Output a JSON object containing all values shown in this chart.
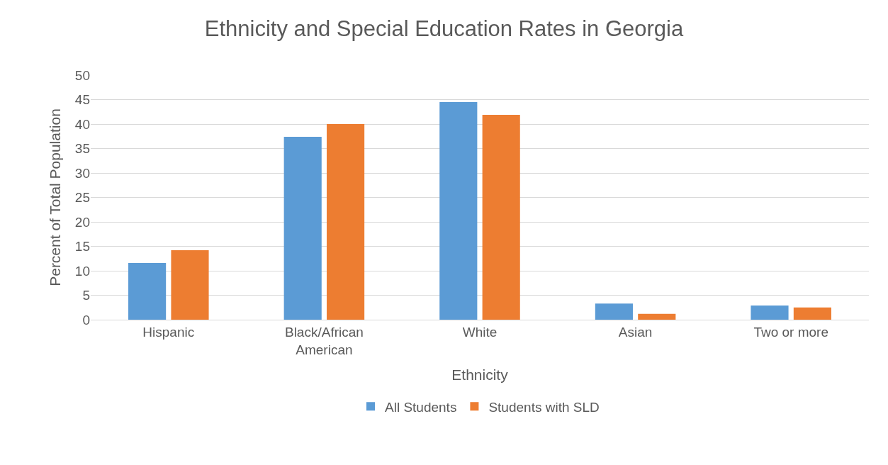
{
  "chart_data": {
    "type": "bar",
    "title": "Ethnicity and Special Education Rates in Georgia",
    "xlabel": "Ethnicity",
    "ylabel": "Percent of Total Population",
    "categories": [
      "Hispanic",
      "Black/African American",
      "White",
      "Asian",
      "Two or more"
    ],
    "series": [
      {
        "name": "All Students",
        "color": "#5b9bd5",
        "values": [
          11.6,
          37.4,
          44.5,
          3.3,
          2.9
        ]
      },
      {
        "name": "Students with SLD",
        "color": "#ed7d31",
        "values": [
          14.2,
          40.0,
          41.9,
          1.2,
          2.5
        ]
      }
    ],
    "ylim": [
      0,
      50
    ],
    "yticks": [
      0,
      5,
      10,
      15,
      20,
      25,
      30,
      35,
      40,
      45,
      50
    ],
    "grid": "y",
    "legend": "bottom"
  }
}
